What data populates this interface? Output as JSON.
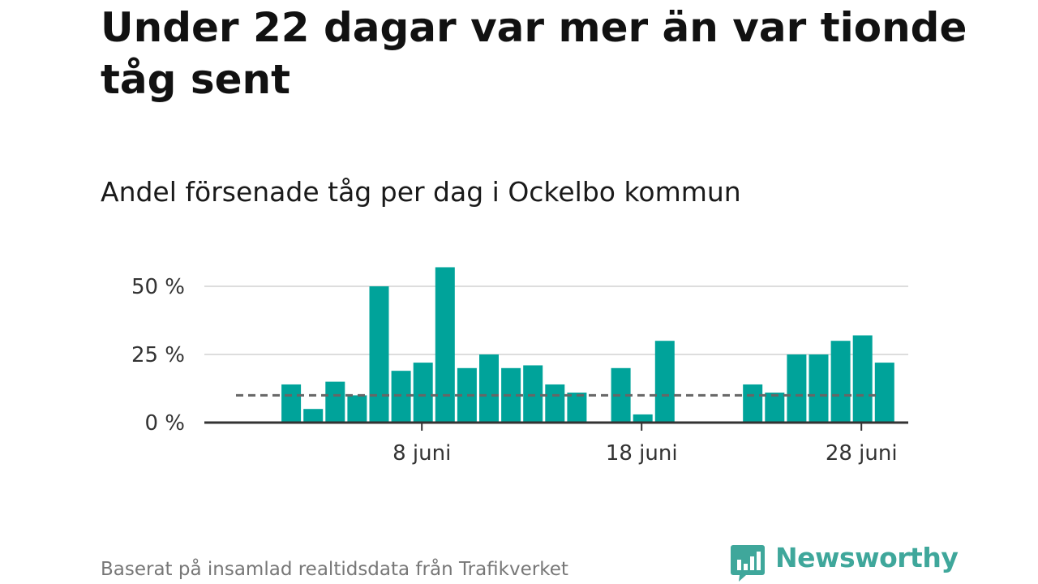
{
  "header": {
    "title": "Under 22 dagar var mer än var tionde tåg sent",
    "subtitle": "Andel försenade tåg per dag i Ockelbo kommun"
  },
  "footer": {
    "source": "Baserat på insamlad realtidsdata från Trafikverket",
    "brand": "Newsworthy"
  },
  "colors": {
    "bar": "#00a39a",
    "reference_line": "#666666",
    "grid": "#dddddd",
    "axis": "#333333",
    "brand": "#3fa79b"
  },
  "chart_data": {
    "type": "bar",
    "title": "",
    "xlabel": "",
    "ylabel": "",
    "x": [
      "1 juni",
      "2 juni",
      "3 juni",
      "4 juni",
      "5 juni",
      "6 juni",
      "7 juni",
      "8 juni",
      "9 juni",
      "10 juni",
      "11 juni",
      "12 juni",
      "13 juni",
      "14 juni",
      "15 juni",
      "16 juni",
      "17 juni",
      "18 juni",
      "19 juni",
      "20 juni",
      "21 juni",
      "22 juni",
      "23 juni",
      "24 juni",
      "25 juni",
      "26 juni",
      "27 juni",
      "28 juni",
      "29 juni",
      "30 juni"
    ],
    "values": [
      0,
      14,
      5,
      15,
      10,
      50,
      19,
      22,
      57,
      20,
      25,
      20,
      21,
      14,
      11,
      0,
      20,
      3,
      30,
      0,
      0,
      0,
      14,
      11,
      25,
      25,
      30,
      32,
      22,
      0
    ],
    "unit": "%",
    "reference_line": {
      "value": 10,
      "style": "dashed"
    },
    "ylim": [
      0,
      60
    ],
    "y_ticks": [
      {
        "value": 0,
        "label": "0 %"
      },
      {
        "value": 25,
        "label": "25 %"
      },
      {
        "value": 50,
        "label": "50 %"
      }
    ],
    "x_ticks": [
      {
        "index": 7,
        "label": "8 juni"
      },
      {
        "index": 17,
        "label": "18 juni"
      },
      {
        "index": 27,
        "label": "28 juni"
      }
    ],
    "grid": true,
    "legend": "none"
  }
}
